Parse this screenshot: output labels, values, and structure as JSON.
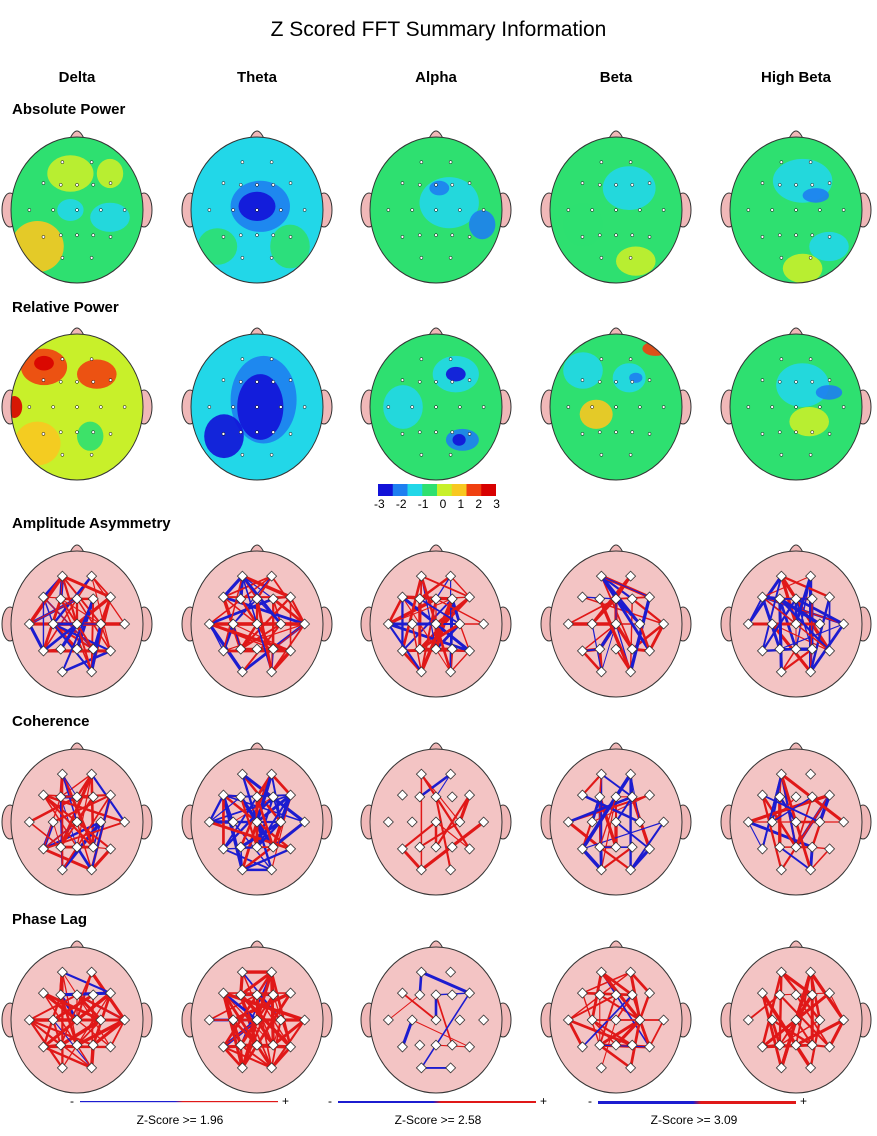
{
  "title": "Z Scored FFT Summary Information",
  "bands": [
    "Delta",
    "Theta",
    "Alpha",
    "Beta",
    "High Beta"
  ],
  "rows": [
    {
      "label": "Absolute Power",
      "kind": "map"
    },
    {
      "label": "Relative Power",
      "kind": "map"
    },
    {
      "label": "Amplitude Asymmetry",
      "kind": "network"
    },
    {
      "label": "Coherence",
      "kind": "network"
    },
    {
      "label": "Phase Lag",
      "kind": "network"
    }
  ],
  "color_scale": {
    "ticks": [
      "-3",
      "-2",
      "-1",
      "0",
      "1",
      "2",
      "3"
    ],
    "colors": [
      "#1212d8",
      "#1e7ff0",
      "#22d7e8",
      "#2ee070",
      "#c8f02a",
      "#f8c820",
      "#f04010",
      "#d80000"
    ]
  },
  "thresholds": [
    {
      "minus": "-",
      "plus": "+",
      "label": "Z-Score >= 1.96"
    },
    {
      "minus": "-",
      "plus": "+",
      "label": "Z-Score >= 2.58"
    },
    {
      "minus": "-",
      "plus": "+",
      "label": "Z-Score >= 3.09"
    }
  ],
  "line_colors": {
    "positive": "#e01818",
    "negative": "#1c1cd0"
  },
  "head_colors": {
    "network_fill": "#f3c4c4",
    "ear": "#f0b8b8",
    "outline": "#333333"
  }
}
